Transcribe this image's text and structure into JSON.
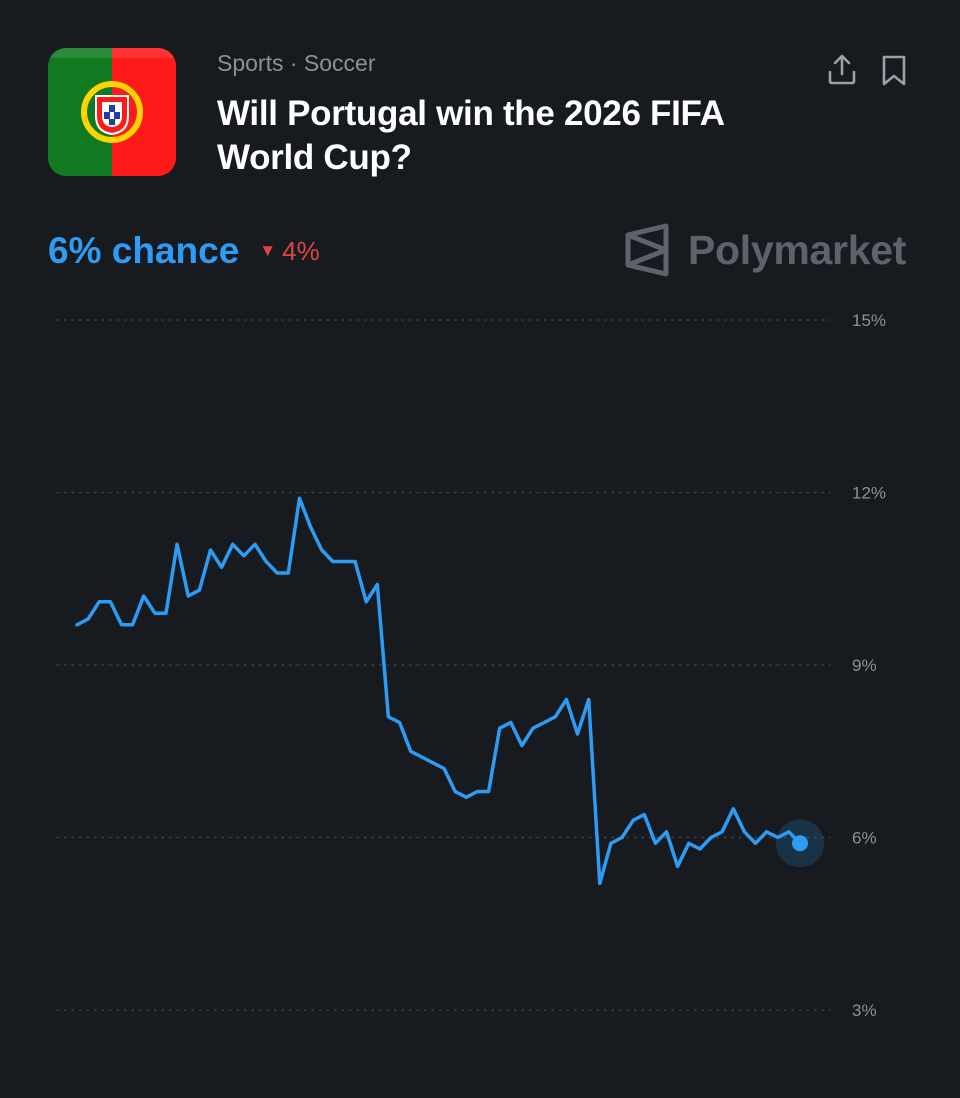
{
  "header": {
    "breadcrumb": "Sports · Soccer",
    "title": "Will Portugal win the 2026 FIFA World Cup?",
    "flag_icon": "portugal-flag-icon",
    "share_icon": "share-icon",
    "bookmark_icon": "bookmark-icon"
  },
  "summary": {
    "chance": "6% chance",
    "change": "4%",
    "change_direction": "down"
  },
  "brand": {
    "name": "Polymarket",
    "logo_icon": "polymarket-logo-icon"
  },
  "colors": {
    "background": "#171b20",
    "accent": "#2d9cf4",
    "negative": "#e2453f",
    "muted": "#8a9199",
    "flag_green": "#0f7a1f",
    "flag_red": "#ff1a1a"
  },
  "chart_data": {
    "type": "line",
    "title": "",
    "xlabel": "",
    "ylabel": "",
    "ylim": [
      3,
      15
    ],
    "yticks": [
      15,
      12,
      9,
      6,
      3
    ],
    "ytick_labels": [
      "15%",
      "12%",
      "9%",
      "6%",
      "3%"
    ],
    "grid": "horizontal-dotted",
    "y_axis_side": "right",
    "series": [
      {
        "color": "#2d9cf4",
        "values": [
          9.7,
          9.8,
          10.1,
          10.1,
          9.7,
          9.7,
          10.2,
          9.9,
          9.9,
          11.1,
          10.2,
          10.3,
          11.0,
          10.7,
          11.1,
          10.9,
          11.1,
          10.8,
          10.6,
          10.6,
          11.9,
          11.4,
          11.0,
          10.8,
          10.8,
          10.8,
          10.1,
          10.4,
          8.1,
          8.0,
          7.5,
          7.4,
          7.3,
          7.2,
          6.8,
          6.7,
          6.8,
          6.8,
          7.9,
          8.0,
          7.6,
          7.9,
          8.0,
          8.1,
          8.4,
          7.8,
          8.4,
          5.2,
          5.9,
          6.0,
          6.3,
          6.4,
          5.9,
          6.1,
          5.5,
          5.9,
          5.8,
          6.0,
          6.1,
          6.5,
          6.1,
          5.9,
          6.1,
          6.0,
          6.1,
          5.9
        ]
      }
    ],
    "last_point_marker": true
  }
}
